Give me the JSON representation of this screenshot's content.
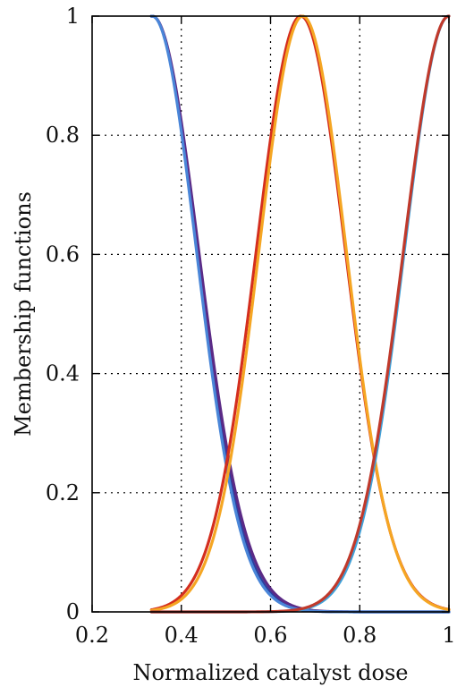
{
  "chart_data": {
    "type": "line",
    "xlabel": "Normalized catalyst dose",
    "ylabel": "Membership functions",
    "xlim": [
      0.2,
      1
    ],
    "ylim": [
      0,
      1
    ],
    "x_ticks": [
      "0.2",
      "0.4",
      "0.6",
      "0.8",
      "1"
    ],
    "y_ticks": [
      "0",
      "0.2",
      "0.4",
      "0.6",
      "0.8",
      "1"
    ],
    "grid": true,
    "x_range": [
      0.333,
      1
    ],
    "series": [
      {
        "shape": "gaussian",
        "center": 0.335,
        "sigma": 0.101,
        "color": "#2b3f9e",
        "values_at": {
          "x": [
            0.333,
            0.4,
            0.5,
            0.6,
            0.7,
            0.8,
            1
          ],
          "y": [
            1.0,
            0.81,
            0.26,
            0.03,
            0.002,
            0.0,
            0.0
          ]
        }
      },
      {
        "shape": "gaussian",
        "center": 0.335,
        "sigma": 0.104,
        "color": "#5b2a86",
        "values_at": {
          "x": [
            0.333,
            0.4,
            0.5,
            0.6,
            0.7,
            0.8,
            1
          ],
          "y": [
            1.0,
            0.82,
            0.28,
            0.04,
            0.002,
            0.0,
            0.0
          ]
        }
      },
      {
        "shape": "gaussian",
        "center": 0.335,
        "sigma": 0.099,
        "color": "#4a86d8",
        "values_at": {
          "x": [
            0.333,
            0.4,
            0.5,
            0.6,
            0.7,
            0.8,
            1
          ],
          "y": [
            1.0,
            0.8,
            0.25,
            0.03,
            0.001,
            0.0,
            0.0
          ]
        }
      },
      {
        "shape": "gaussian",
        "center": 0.668,
        "sigma": 0.1,
        "color": "#d42e1e",
        "values_at": {
          "x": [
            0.333,
            0.4,
            0.5,
            0.6,
            0.668,
            0.8,
            1
          ],
          "y": [
            0.02,
            0.03,
            0.25,
            0.79,
            1.0,
            0.42,
            0.01
          ]
        }
      },
      {
        "shape": "gaussian",
        "center": 0.672,
        "sigma": 0.098,
        "color": "#f5a623",
        "values_at": {
          "x": [
            0.333,
            0.4,
            0.5,
            0.6,
            0.672,
            0.8,
            1
          ],
          "y": [
            0.01,
            0.02,
            0.22,
            0.76,
            1.0,
            0.43,
            0.01
          ]
        }
      },
      {
        "shape": "gaussian",
        "center": 1.0,
        "sigma": 0.1,
        "color": "#3fa0d8",
        "values_at": {
          "x": [
            0.333,
            0.6,
            0.7,
            0.8,
            0.9,
            1
          ],
          "y": [
            0.0,
            0.03,
            0.09,
            0.22,
            0.61,
            1.0
          ]
        }
      },
      {
        "shape": "gaussian",
        "center": 1.0,
        "sigma": 0.102,
        "color": "#c0392b",
        "values_at": {
          "x": [
            0.333,
            0.6,
            0.7,
            0.8,
            0.9,
            1
          ],
          "y": [
            0.0,
            0.03,
            0.1,
            0.23,
            0.62,
            1.0
          ]
        }
      }
    ]
  }
}
